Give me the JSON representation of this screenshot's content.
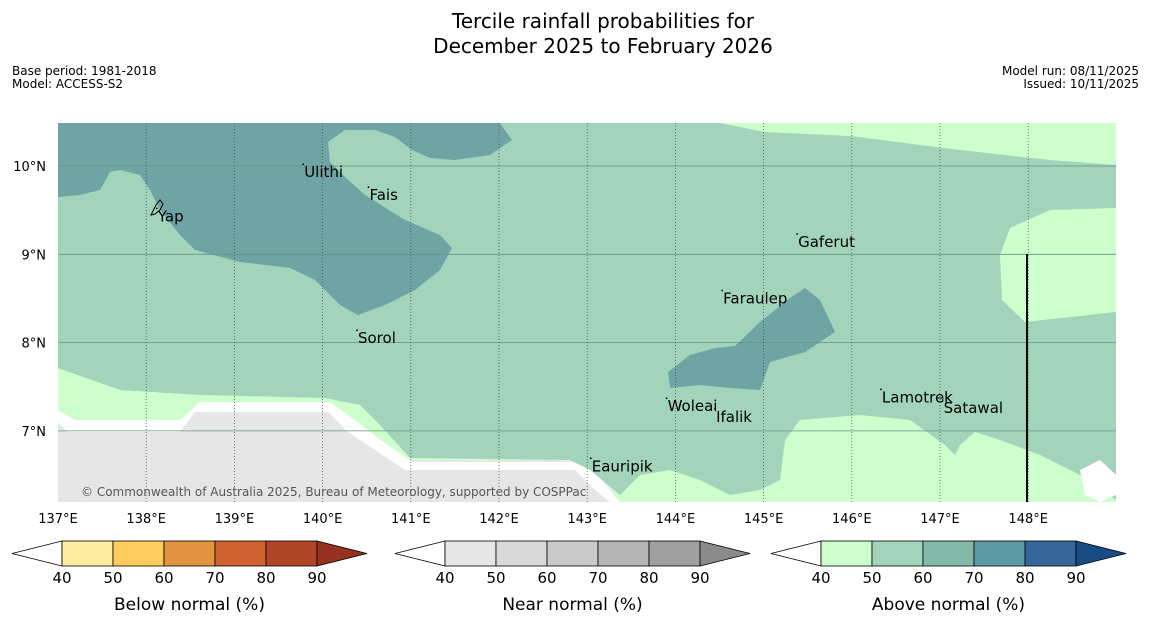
{
  "title_line1": "Tercile rainfall probabilities for",
  "title_line2": "December 2025 to February 2026",
  "base_period": "Base period: 1981-2018",
  "model": "Model: ACCESS-S2",
  "model_run": "Model run: 08/11/2025",
  "issued": "Issued: 10/11/2025",
  "copyright": "© Commonwealth of Australia 2025, Bureau of Meteorology, supported by COSPPac",
  "lat_labels": [
    "10°N",
    "9°N",
    "8°N",
    "7°N"
  ],
  "lon_labels": [
    "137°E",
    "138°E",
    "139°E",
    "140°E",
    "141°E",
    "142°E",
    "143°E",
    "144°E",
    "145°E",
    "146°E",
    "147°E",
    "148°E"
  ],
  "places": [
    {
      "name": "Ulithi",
      "lon": 139.78,
      "lat": 10.02
    },
    {
      "name": "Fais",
      "lon": 140.52,
      "lat": 9.76
    },
    {
      "name": "Yap",
      "lon": 138.12,
      "lat": 9.52
    },
    {
      "name": "Gaferut",
      "lon": 145.38,
      "lat": 9.23
    },
    {
      "name": "Faraulep",
      "lon": 144.53,
      "lat": 8.59
    },
    {
      "name": "Sorol",
      "lon": 140.39,
      "lat": 8.14
    },
    {
      "name": "Lamotrek",
      "lon": 146.33,
      "lat": 7.47
    },
    {
      "name": "Woleai",
      "lon": 143.9,
      "lat": 7.37
    },
    {
      "name": "Ifalik",
      "lon": 144.45,
      "lat": 7.25
    },
    {
      "name": "Satawal",
      "lon": 147.03,
      "lat": 7.35
    },
    {
      "name": "Eauripik",
      "lon": 143.04,
      "lat": 6.69
    }
  ],
  "legends": [
    {
      "title": "Below normal (%)",
      "ticks": [
        "40",
        "50",
        "60",
        "70",
        "80",
        "90"
      ],
      "colors": [
        "#ffffff",
        "#feeda0",
        "#fecc5c",
        "#e39440",
        "#d0622f",
        "#b04526",
        "#96321f"
      ]
    },
    {
      "title": "Near normal (%)",
      "ticks": [
        "40",
        "50",
        "60",
        "70",
        "80",
        "90"
      ],
      "colors": [
        "#ffffff",
        "#e6e6e6",
        "#d9d9d9",
        "#c9c9c9",
        "#b5b5b5",
        "#a0a0a0",
        "#8a8a8a"
      ]
    },
    {
      "title": "Above normal (%)",
      "ticks": [
        "40",
        "50",
        "60",
        "70",
        "80",
        "90"
      ],
      "colors": [
        "#ffffff",
        "#ccffcc",
        "#a1d4bb",
        "#83b9a9",
        "#5d99a6",
        "#346699",
        "#174d84"
      ]
    }
  ]
}
